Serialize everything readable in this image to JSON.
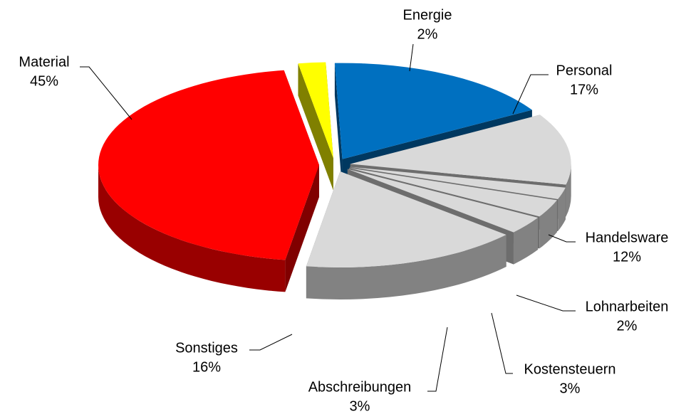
{
  "chart_data": {
    "type": "pie3d",
    "categories": [
      "Energie",
      "Personal",
      "Handelsware",
      "Lohnarbeiten",
      "Kostensteuern",
      "Abschreibungen",
      "Sonstiges",
      "Material"
    ],
    "values": [
      2,
      17,
      12,
      2,
      3,
      3,
      16,
      45
    ],
    "value_labels": [
      "2%",
      "17%",
      "12%",
      "2%",
      "3%",
      "3%",
      "16%",
      "45%"
    ],
    "colors": [
      "#ffff00",
      "#0070c0",
      "#d9d9d9",
      "#d9d9d9",
      "#d9d9d9",
      "#d9d9d9",
      "#d9d9d9",
      "#ff0000"
    ]
  }
}
